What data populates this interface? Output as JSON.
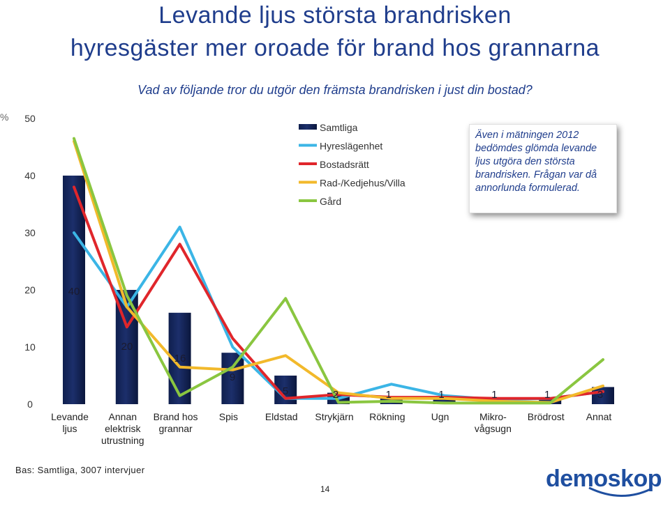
{
  "header": {
    "title_line1": "Levande ljus största brandrisken",
    "title_line2": "hyresgäster mer oroade för brand hos grannarna",
    "question": "Vad av följande tror du utgör den främsta brandrisken i just din bostad?",
    "percent_symbol": "%"
  },
  "note": "Även i mätningen 2012 bedömdes glömda levande ljus utgöra den största brandrisken. Frågan var då annorlunda formulerad.",
  "footer": {
    "base": "Bas: Samtliga, 3007 intervjuer",
    "page_number": "14",
    "logo_text": "demoskop"
  },
  "colors": {
    "title": "#1f3d8c",
    "bar": "#1c2f6b",
    "hyreslagenhet": "#3bb5e6",
    "bostadsratt": "#e0262b",
    "radhus": "#f2b92b",
    "gard": "#8ac640"
  },
  "chart_data": {
    "type": "bar",
    "categories": [
      [
        "Levande",
        "ljus"
      ],
      [
        "Annan",
        "elektrisk",
        "utrustning"
      ],
      [
        "Brand hos",
        "grannar"
      ],
      [
        "Spis"
      ],
      [
        "Eldstad"
      ],
      [
        "Strykjärn"
      ],
      [
        "Rökning"
      ],
      [
        "Ugn"
      ],
      [
        "Mikro-",
        "vågsugn"
      ],
      [
        "Brödrost"
      ],
      [
        "Annat"
      ]
    ],
    "ylim": [
      0,
      50
    ],
    "yticks": [
      "0",
      "10",
      "20",
      "30",
      "40",
      "50"
    ],
    "bar_series": {
      "name": "Samtliga",
      "values": [
        40,
        20,
        16,
        9,
        5,
        2,
        1,
        1,
        1,
        1,
        3
      ],
      "labels": [
        "40",
        "20",
        "16",
        "9",
        "5",
        "2",
        "1",
        "1",
        "1",
        "1",
        "3"
      ]
    },
    "line_series": [
      {
        "name": "Hyreslägenhet",
        "color": "#3bb5e6",
        "values": [
          30,
          17,
          31,
          10,
          1,
          1,
          3.5,
          1.5,
          0.8,
          1,
          2.2
        ]
      },
      {
        "name": "Bostadsrätt",
        "color": "#e0262b",
        "values": [
          38,
          13.5,
          28,
          11.5,
          1,
          1.7,
          1.2,
          1.2,
          1,
          1,
          2.2
        ]
      },
      {
        "name": "Rad-/Kedjehus/Villa",
        "color": "#f2b92b",
        "values": [
          46,
          17,
          6.5,
          6,
          8.5,
          2,
          1,
          1,
          0.5,
          0.3,
          3.2
        ]
      },
      {
        "name": "Gård",
        "color": "#8ac640",
        "values": [
          46.5,
          19,
          1.5,
          6.5,
          18.5,
          0.3,
          0.5,
          0.2,
          0.2,
          0.2,
          7.8
        ]
      }
    ],
    "legend": {
      "placement": "top-center",
      "entries": [
        "Samtliga",
        "Hyreslägenhet",
        "Bostadsrätt",
        "Rad-/Kedjehus/Villa",
        "Gård"
      ]
    },
    "grid": false
  }
}
